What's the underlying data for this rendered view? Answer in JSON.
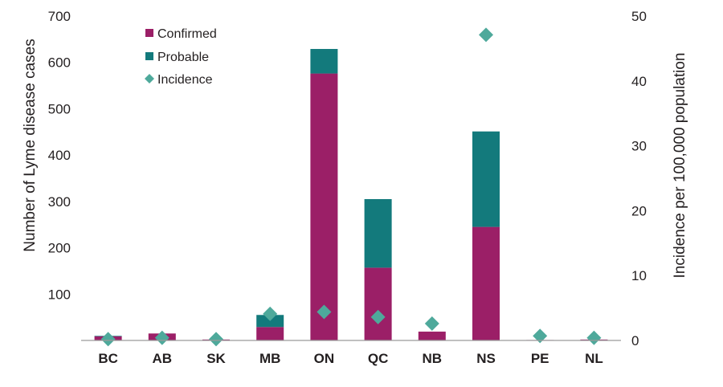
{
  "chart_data": {
    "type": "bar",
    "stacked": true,
    "categories": [
      "BC",
      "AB",
      "SK",
      "MB",
      "ON",
      "QC",
      "NB",
      "NS",
      "PE",
      "NL"
    ],
    "series": [
      {
        "name": "Confirmed",
        "axis": "left",
        "color": "#9b1f67",
        "values": [
          9,
          15,
          2,
          29,
          576,
          157,
          19,
          245,
          1,
          2
        ]
      },
      {
        "name": "Probable",
        "axis": "left",
        "color": "#137a7c",
        "values": [
          1,
          0,
          0,
          26,
          53,
          148,
          0,
          206,
          0,
          0
        ]
      },
      {
        "name": "Incidence",
        "axis": "right",
        "type": "scatter",
        "marker": "diamond",
        "color": "#4ea99b",
        "values": [
          0.2,
          0.4,
          0.2,
          4.1,
          4.4,
          3.6,
          2.6,
          47.1,
          0.7,
          0.4
        ]
      }
    ],
    "ylabel": "Number of Lyme disease cases",
    "y2label": "Incidence per 100,000 population",
    "ylim": [
      0,
      700
    ],
    "y2lim": [
      0,
      50
    ],
    "yticks": [
      100,
      200,
      300,
      400,
      500,
      600,
      700
    ],
    "y2ticks": [
      0,
      10,
      20,
      30,
      40,
      50
    ],
    "legend": [
      "Confirmed",
      "Probable",
      "Incidence"
    ],
    "legend_position": "top-left",
    "grid": false
  }
}
